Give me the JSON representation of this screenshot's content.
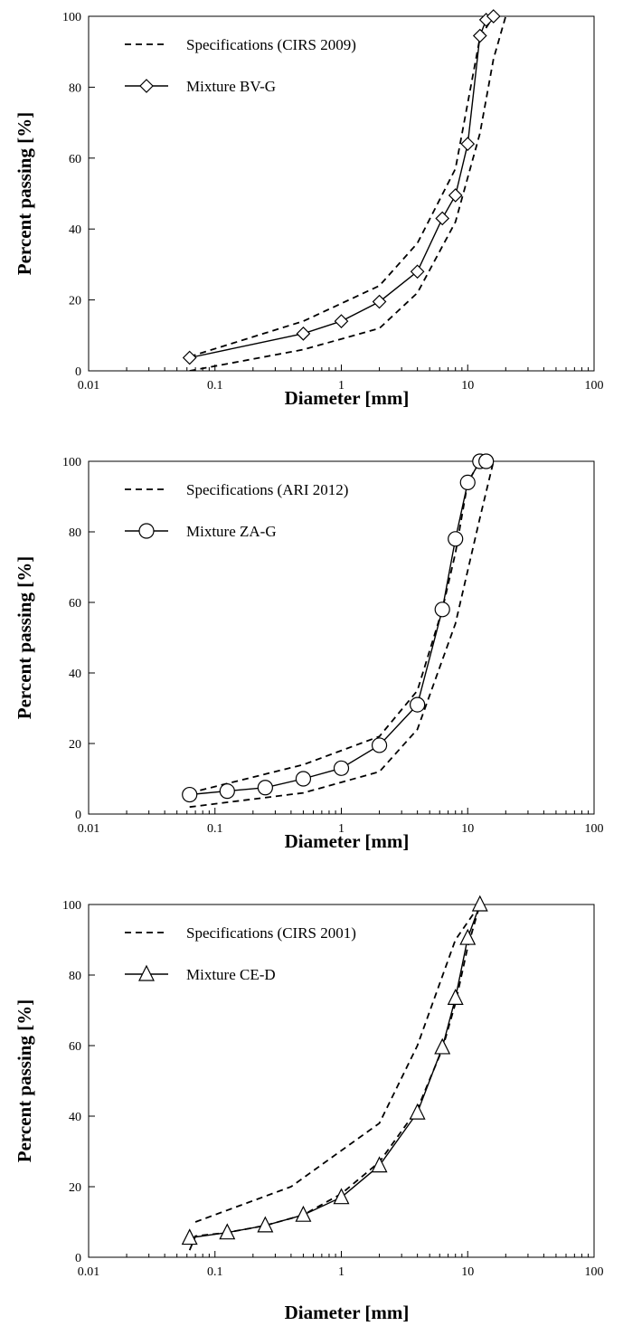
{
  "chart_data": [
    {
      "type": "line",
      "x_scale": "log",
      "xlim": [
        0.01,
        100
      ],
      "ylim": [
        0,
        100
      ],
      "xticks": [
        "0.01",
        "0.1",
        "1",
        "10",
        "100"
      ],
      "yticks": [
        "0",
        "20",
        "40",
        "60",
        "80",
        "100"
      ],
      "xlabel": "Diameter [mm]",
      "ylabel": "Percent passing [%]",
      "grid": false,
      "legend_position": "top-left",
      "legend": [
        "Specifications (CIRS 2009)",
        "Mixture BV-G"
      ],
      "spec_upper": {
        "x": [
          0.063,
          0.5,
          2,
          4,
          8,
          12.5,
          16
        ],
        "y": [
          4,
          14,
          24,
          36,
          57,
          94,
          100
        ]
      },
      "spec_lower": {
        "x": [
          0.063,
          0.5,
          2,
          4,
          8,
          12.5,
          16,
          20
        ],
        "y": [
          0,
          6,
          12,
          22,
          42,
          67,
          88,
          100
        ]
      },
      "series": [
        {
          "name": "Mixture BV-G",
          "marker": "diamond",
          "x": [
            0.063,
            0.5,
            1,
            2,
            4,
            6.3,
            8,
            10,
            12.5,
            14,
            16
          ],
          "y": [
            3.7,
            10.5,
            14,
            19.5,
            28,
            43,
            49.5,
            64,
            94.5,
            99,
            100
          ]
        }
      ]
    },
    {
      "type": "line",
      "x_scale": "log",
      "xlim": [
        0.01,
        100
      ],
      "ylim": [
        0,
        100
      ],
      "xticks": [
        "0.01",
        "0.1",
        "1",
        "10",
        "100"
      ],
      "yticks": [
        "0",
        "20",
        "40",
        "60",
        "80",
        "100"
      ],
      "xlabel": "Diameter [mm]",
      "ylabel": "Percent passing [%]",
      "grid": false,
      "legend_position": "top-left",
      "legend": [
        "Specifications (ARI 2012)",
        "Mixture ZA-G"
      ],
      "spec_upper": {
        "x": [
          0.063,
          0.5,
          2,
          4,
          6.3,
          8,
          10,
          12.5
        ],
        "y": [
          6,
          14,
          22,
          35,
          58,
          74,
          94,
          100
        ]
      },
      "spec_lower": {
        "x": [
          0.063,
          0.5,
          2,
          4,
          8,
          12.5,
          16
        ],
        "y": [
          2,
          6,
          12,
          24,
          54,
          84,
          100
        ]
      },
      "series": [
        {
          "name": "Mixture ZA-G",
          "marker": "circle",
          "x": [
            0.063,
            0.125,
            0.25,
            0.5,
            1,
            2,
            4,
            6.3,
            8,
            10,
            12.5,
            14
          ],
          "y": [
            5.5,
            6.5,
            7.5,
            10,
            13,
            19.5,
            31,
            58,
            78,
            94,
            100,
            100
          ]
        }
      ]
    },
    {
      "type": "line",
      "x_scale": "log",
      "xlim": [
        0.01,
        100
      ],
      "ylim": [
        0,
        100
      ],
      "xticks": [
        "0.01",
        "0.1",
        "1",
        "10",
        "100"
      ],
      "yticks": [
        "0",
        "20",
        "40",
        "60",
        "80",
        "100"
      ],
      "xlabel": "Diameter [mm]",
      "ylabel": "Percent passing [%]",
      "grid": false,
      "legend_position": "top-left",
      "legend": [
        "Specifications (CIRS 2001)",
        "Mixture CE-D"
      ],
      "spec_upper": {
        "x": [
          0.07,
          0.4,
          2,
          4,
          8,
          12.5
        ],
        "y": [
          10,
          20,
          38,
          60,
          90,
          100
        ]
      },
      "spec_lower": {
        "x": [
          0.063,
          0.07,
          0.125,
          0.25,
          0.5,
          1,
          2,
          4,
          6.3,
          8,
          10,
          12.5
        ],
        "y": [
          2,
          6,
          7,
          9,
          12,
          18,
          27,
          42,
          59,
          72,
          88,
          100
        ]
      },
      "series": [
        {
          "name": "Mixture CE-D",
          "marker": "triangle",
          "x": [
            0.063,
            0.125,
            0.25,
            0.5,
            1,
            2,
            4,
            6.3,
            8,
            10,
            12.5
          ],
          "y": [
            5.5,
            7,
            9,
            12,
            17,
            26,
            41,
            59.5,
            73.5,
            90.5,
            100
          ]
        }
      ]
    }
  ]
}
